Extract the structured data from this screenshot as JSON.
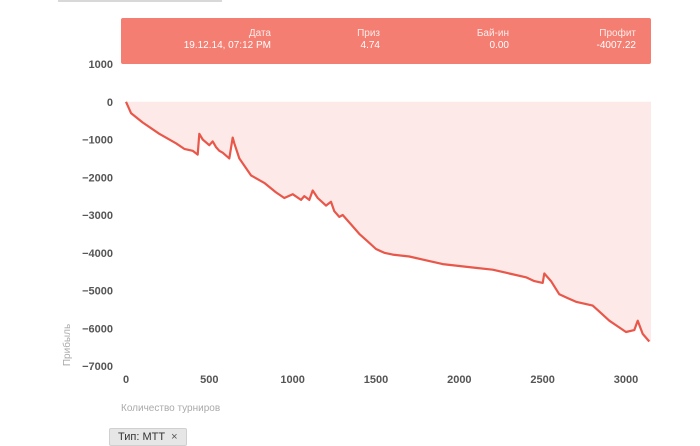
{
  "tooltip": {
    "date_label": "Дата",
    "date_value": "19.12.14, 07:12 PM",
    "prize_label": "Приз",
    "prize_value": "4.74",
    "buyin_label": "Бай-ин",
    "buyin_value": "0.00",
    "profit_label": "Профит",
    "profit_value": "-4007.22"
  },
  "filter": {
    "label": "Тип: MTT",
    "close_symbol": "×"
  },
  "colors": {
    "line": "#e8574a",
    "fill": "#fde9e7",
    "tooltip": "#f47e72"
  },
  "chart_data": {
    "type": "area",
    "title": "",
    "xlabel": "Количество турниров",
    "ylabel": "Прибыль",
    "xlim": [
      0,
      3150
    ],
    "ylim": [
      -7000,
      1000
    ],
    "xticks": [
      0,
      500,
      1000,
      1500,
      2000,
      2500,
      3000
    ],
    "yticks": [
      1000,
      0,
      -1000,
      -2000,
      -3000,
      -4000,
      -5000,
      -6000,
      -7000
    ],
    "series": [
      {
        "name": "Прибыль",
        "x": [
          0,
          30,
          100,
          200,
          300,
          350,
          400,
          430,
          440,
          460,
          500,
          520,
          540,
          560,
          580,
          620,
          640,
          650,
          680,
          750,
          830,
          900,
          950,
          1000,
          1050,
          1070,
          1100,
          1120,
          1150,
          1200,
          1230,
          1250,
          1280,
          1300,
          1350,
          1400,
          1450,
          1500,
          1550,
          1600,
          1700,
          1800,
          1900,
          2000,
          2100,
          2200,
          2300,
          2400,
          2450,
          2500,
          2510,
          2550,
          2600,
          2650,
          2700,
          2800,
          2850,
          2900,
          2950,
          3000,
          3050,
          3070,
          3100,
          3140
        ],
        "y": [
          0,
          -300,
          -550,
          -850,
          -1100,
          -1250,
          -1300,
          -1400,
          -850,
          -1000,
          -1150,
          -1050,
          -1200,
          -1300,
          -1350,
          -1500,
          -950,
          -1100,
          -1500,
          -1950,
          -2150,
          -2400,
          -2550,
          -2450,
          -2600,
          -2500,
          -2600,
          -2350,
          -2550,
          -2750,
          -2650,
          -2900,
          -3050,
          -3000,
          -3250,
          -3500,
          -3700,
          -3900,
          -4000,
          -4050,
          -4100,
          -4200,
          -4300,
          -4350,
          -4400,
          -4450,
          -4550,
          -4650,
          -4750,
          -4800,
          -4550,
          -4750,
          -5100,
          -5200,
          -5300,
          -5400,
          -5600,
          -5800,
          -5950,
          -6100,
          -6050,
          -5800,
          -6150,
          -6350
        ]
      }
    ]
  }
}
